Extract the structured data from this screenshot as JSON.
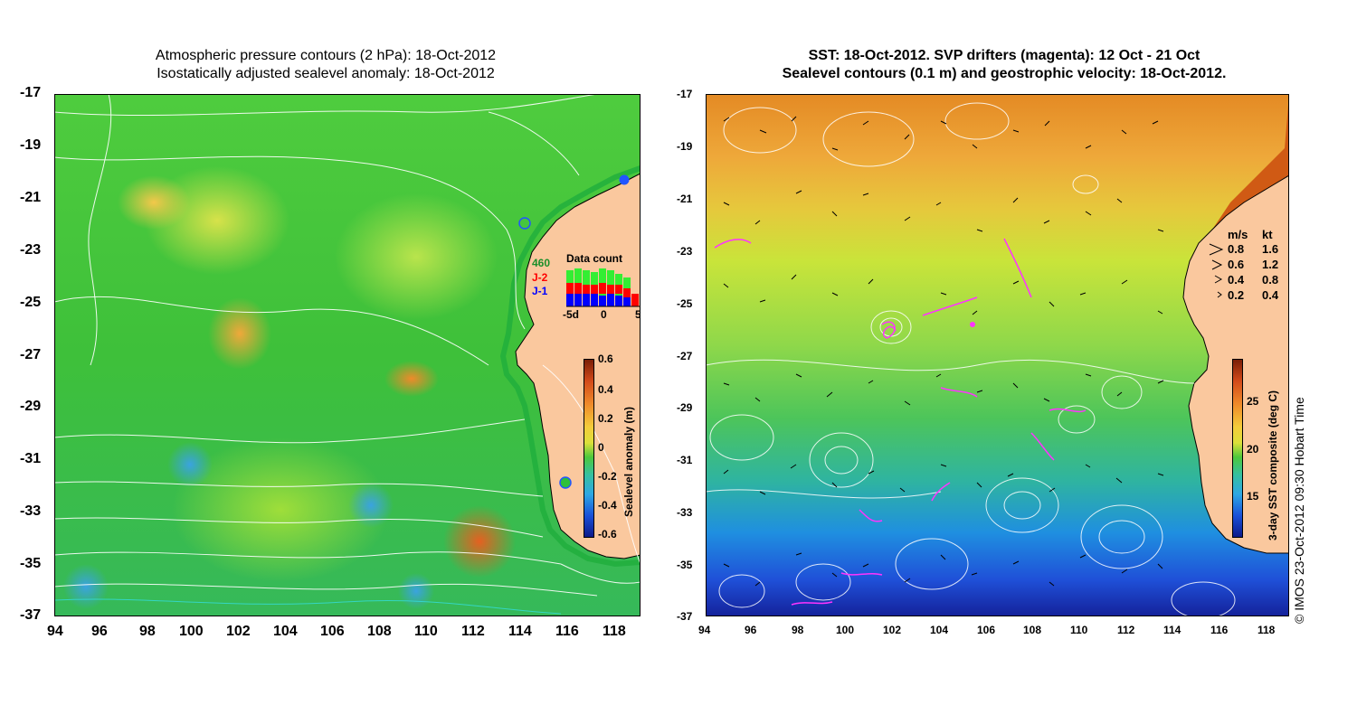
{
  "left_panel": {
    "title_line1": "Atmospheric pressure contours (2 hPa): 18-Oct-2012",
    "title_line2": "Isostatically adjusted sealevel anomaly: 18-Oct-2012",
    "colorbar_label": "Sealevel anomaly (m)",
    "colorbar_ticks": [
      "0.6",
      "0.4",
      "0.2",
      "0",
      "-0.2",
      "-0.4",
      "-0.6"
    ],
    "data_count_title": "Data count",
    "data_count_labels": [
      "460",
      "J-2",
      "J-1"
    ],
    "data_count_axis": [
      "-5d",
      "0",
      "5"
    ],
    "data_count_colors": [
      "#33cc33",
      "#ff0000",
      "#0000ff"
    ]
  },
  "right_panel": {
    "title_line1": "SST: 18-Oct-2012. SVP drifters (magenta): 12 Oct - 21 Oct",
    "title_line2": "Sealevel contours (0.1 m) and geostrophic velocity: 18-Oct-2012.",
    "colorbar_label": "3-day SST composite (deg C)",
    "colorbar_ticks": [
      "25",
      "20",
      "15"
    ],
    "velocity_legend": {
      "header_ms": "m/s",
      "header_kt": "kt",
      "rows": [
        {
          "ms": "0.8",
          "kt": "1.6"
        },
        {
          "ms": "0.6",
          "kt": "1.2"
        },
        {
          "ms": "0.4",
          "kt": "0.8"
        },
        {
          "ms": "0.2",
          "kt": "0.4"
        }
      ]
    },
    "watermark": "© IMOS 23-Oct-2012 09:30 Hobart Time",
    "drifter_color": "#ff33ff"
  },
  "axes": {
    "lat_labels": [
      "-17",
      "-19",
      "-21",
      "-23",
      "-25",
      "-27",
      "-29",
      "-31",
      "-33",
      "-35",
      "-37"
    ],
    "lon_labels": [
      "94",
      "96",
      "98",
      "100",
      "102",
      "104",
      "106",
      "108",
      "110",
      "112",
      "114",
      "116",
      "118"
    ]
  },
  "colors": {
    "land": "#fac89e",
    "contour": "#ffffff",
    "coastline": "#000000"
  }
}
